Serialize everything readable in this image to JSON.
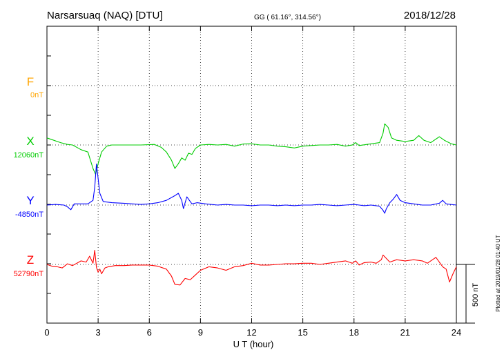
{
  "header": {
    "station": "Narsarsuaq (NAQ)  [DTU]",
    "coords": "GG ( 61.16°, 314.56°)",
    "date": "2018/12/28"
  },
  "side_note": "Plotted at 2019/01/28 01:40 UT",
  "scale_label": "500 nT",
  "colors": {
    "F": "#ffa500",
    "X": "#00cc00",
    "Y": "#0000ff",
    "Z": "#ff0000"
  },
  "chart_data": {
    "type": "line",
    "xlabel": "U T (hour)",
    "xlim": [
      0,
      24
    ],
    "xticks": [
      "0",
      "3",
      "6",
      "9",
      "12",
      "15",
      "18",
      "21",
      "24"
    ],
    "scale_nT": 500,
    "components": [
      {
        "name": "F",
        "baseline": "0nT"
      },
      {
        "name": "X",
        "baseline": "12060nT"
      },
      {
        "name": "Y",
        "baseline": "-4850nT"
      },
      {
        "name": "Z",
        "baseline": "52790nT"
      }
    ],
    "series": [
      {
        "name": "X",
        "points": [
          [
            0,
            60
          ],
          [
            0.3,
            45
          ],
          [
            0.8,
            20
          ],
          [
            1.2,
            5
          ],
          [
            1.5,
            0
          ],
          [
            2.0,
            -40
          ],
          [
            2.4,
            -60
          ],
          [
            2.7,
            -200
          ],
          [
            2.85,
            -250
          ],
          [
            3.0,
            -160
          ],
          [
            3.2,
            -60
          ],
          [
            3.5,
            -10
          ],
          [
            3.8,
            0
          ],
          [
            4.5,
            0
          ],
          [
            5.5,
            0
          ],
          [
            6.3,
            5
          ],
          [
            6.7,
            -20
          ],
          [
            7.0,
            -60
          ],
          [
            7.3,
            -130
          ],
          [
            7.5,
            -200
          ],
          [
            7.7,
            -160
          ],
          [
            7.9,
            -110
          ],
          [
            8.1,
            -130
          ],
          [
            8.3,
            -70
          ],
          [
            8.5,
            -80
          ],
          [
            8.7,
            -30
          ],
          [
            9.0,
            0
          ],
          [
            9.5,
            5
          ],
          [
            10,
            0
          ],
          [
            10.5,
            5
          ],
          [
            11,
            -10
          ],
          [
            11.5,
            8
          ],
          [
            12,
            10
          ],
          [
            12.5,
            0
          ],
          [
            13,
            0
          ],
          [
            13.5,
            -10
          ],
          [
            14,
            -15
          ],
          [
            14.5,
            -25
          ],
          [
            15,
            -10
          ],
          [
            15.5,
            -5
          ],
          [
            16,
            0
          ],
          [
            16.5,
            0
          ],
          [
            17,
            5
          ],
          [
            17.5,
            -10
          ],
          [
            17.9,
            0
          ],
          [
            18.1,
            20
          ],
          [
            18.3,
            -5
          ],
          [
            19,
            10
          ],
          [
            19.5,
            20
          ],
          [
            19.7,
            100
          ],
          [
            19.8,
            180
          ],
          [
            20.0,
            150
          ],
          [
            20.2,
            60
          ],
          [
            20.5,
            40
          ],
          [
            21,
            30
          ],
          [
            21.5,
            40
          ],
          [
            21.8,
            80
          ],
          [
            22.1,
            40
          ],
          [
            22.5,
            20
          ],
          [
            23,
            70
          ],
          [
            23.3,
            40
          ],
          [
            23.7,
            10
          ],
          [
            24,
            0
          ]
        ]
      },
      {
        "name": "Y",
        "points": [
          [
            0,
            0
          ],
          [
            0.5,
            5
          ],
          [
            1.0,
            0
          ],
          [
            1.2,
            -15
          ],
          [
            1.4,
            -40
          ],
          [
            1.6,
            10
          ],
          [
            2.0,
            10
          ],
          [
            2.4,
            10
          ],
          [
            2.7,
            40
          ],
          [
            2.8,
            150
          ],
          [
            2.9,
            350
          ],
          [
            3.1,
            100
          ],
          [
            3.3,
            30
          ],
          [
            3.8,
            20
          ],
          [
            4.5,
            15
          ],
          [
            5,
            10
          ],
          [
            5.5,
            5
          ],
          [
            6,
            10
          ],
          [
            6.5,
            20
          ],
          [
            7,
            40
          ],
          [
            7.5,
            80
          ],
          [
            7.7,
            100
          ],
          [
            7.9,
            40
          ],
          [
            8.0,
            -30
          ],
          [
            8.2,
            70
          ],
          [
            8.5,
            10
          ],
          [
            8.8,
            20
          ],
          [
            9.3,
            10
          ],
          [
            10,
            0
          ],
          [
            10.5,
            5
          ],
          [
            11,
            0
          ],
          [
            11.5,
            0
          ],
          [
            12,
            -5
          ],
          [
            12.5,
            0
          ],
          [
            13,
            0
          ],
          [
            13.5,
            -5
          ],
          [
            14,
            0
          ],
          [
            14.5,
            -5
          ],
          [
            15,
            0
          ],
          [
            15.5,
            0
          ],
          [
            16,
            5
          ],
          [
            16.5,
            0
          ],
          [
            17,
            -5
          ],
          [
            17.5,
            0
          ],
          [
            18,
            5
          ],
          [
            18.3,
            0
          ],
          [
            18.6,
            -5
          ],
          [
            19,
            0
          ],
          [
            19.5,
            -10
          ],
          [
            19.7,
            -45
          ],
          [
            19.8,
            -70
          ],
          [
            19.9,
            -30
          ],
          [
            20.1,
            20
          ],
          [
            20.3,
            50
          ],
          [
            20.5,
            90
          ],
          [
            20.7,
            40
          ],
          [
            21,
            20
          ],
          [
            21.5,
            10
          ],
          [
            22,
            0
          ],
          [
            22.5,
            0
          ],
          [
            23,
            15
          ],
          [
            23.2,
            40
          ],
          [
            23.4,
            10
          ],
          [
            24,
            0
          ]
        ]
      },
      {
        "name": "Z",
        "points": [
          [
            0,
            0
          ],
          [
            0.3,
            -15
          ],
          [
            0.6,
            -20
          ],
          [
            0.9,
            -30
          ],
          [
            1.2,
            5
          ],
          [
            1.5,
            -10
          ],
          [
            2.0,
            30
          ],
          [
            2.3,
            20
          ],
          [
            2.5,
            70
          ],
          [
            2.7,
            10
          ],
          [
            2.8,
            120
          ],
          [
            2.9,
            -25
          ],
          [
            3.0,
            -65
          ],
          [
            3.1,
            -40
          ],
          [
            3.2,
            -80
          ],
          [
            3.4,
            -30
          ],
          [
            3.6,
            -20
          ],
          [
            4,
            -10
          ],
          [
            4.5,
            -10
          ],
          [
            5,
            -5
          ],
          [
            5.5,
            -5
          ],
          [
            6,
            -5
          ],
          [
            6.5,
            -15
          ],
          [
            7,
            -40
          ],
          [
            7.3,
            -100
          ],
          [
            7.5,
            -170
          ],
          [
            7.8,
            -175
          ],
          [
            8.1,
            -120
          ],
          [
            8.4,
            -130
          ],
          [
            8.7,
            -90
          ],
          [
            9,
            -50
          ],
          [
            9.5,
            -20
          ],
          [
            10,
            -30
          ],
          [
            10.5,
            -50
          ],
          [
            11,
            -20
          ],
          [
            11.5,
            -10
          ],
          [
            12,
            10
          ],
          [
            12.5,
            -5
          ],
          [
            13,
            -5
          ],
          [
            13.5,
            0
          ],
          [
            14,
            5
          ],
          [
            14.5,
            5
          ],
          [
            15,
            10
          ],
          [
            15.5,
            10
          ],
          [
            16,
            0
          ],
          [
            16.5,
            10
          ],
          [
            17,
            20
          ],
          [
            17.5,
            30
          ],
          [
            17.9,
            10
          ],
          [
            18.1,
            30
          ],
          [
            18.3,
            -5
          ],
          [
            18.6,
            15
          ],
          [
            19,
            20
          ],
          [
            19.3,
            10
          ],
          [
            19.6,
            40
          ],
          [
            19.7,
            80
          ],
          [
            19.9,
            50
          ],
          [
            20.1,
            20
          ],
          [
            20.5,
            40
          ],
          [
            21,
            30
          ],
          [
            21.5,
            40
          ],
          [
            22,
            30
          ],
          [
            22.3,
            10
          ],
          [
            22.6,
            40
          ],
          [
            22.8,
            60
          ],
          [
            23,
            20
          ],
          [
            23.2,
            -20
          ],
          [
            23.4,
            -40
          ],
          [
            23.6,
            -150
          ],
          [
            23.8,
            -80
          ],
          [
            24,
            -20
          ]
        ]
      }
    ]
  }
}
